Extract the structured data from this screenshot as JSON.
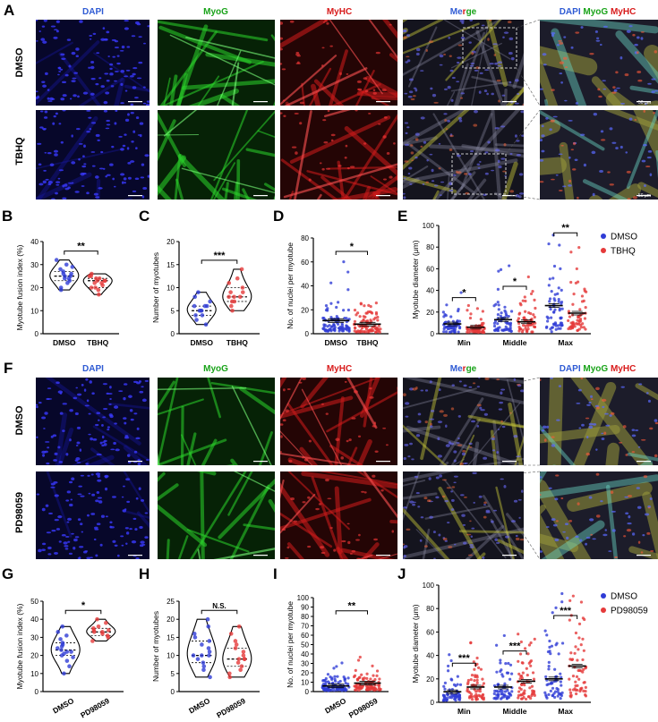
{
  "figure_sections": {
    "top": {
      "letter": "A",
      "channels": [
        "DAPI",
        "MyoG",
        "MyHC",
        "Merge"
      ],
      "merge_inset_title": {
        "dapi": "DAPI",
        "myog": "MyoG",
        "myhc": "MyHC"
      },
      "rows": [
        "DMSO",
        "TBHQ"
      ],
      "scale_text": "50 μm"
    },
    "bottom": {
      "letter": "F",
      "channels": [
        "DAPI",
        "MyoG",
        "MyHC",
        "Merge"
      ],
      "merge_inset_title": {
        "dapi": "DAPI",
        "myog": "MyoG",
        "myhc": "MyHC"
      },
      "rows": [
        "DMSO",
        "PD98059"
      ]
    }
  },
  "colors": {
    "dapi_label": "#2f5bd4",
    "myog_label": "#19a319",
    "myhc_label": "#d81b1b",
    "merge_m": "#2f5bd4",
    "merge_e": "#19a319",
    "merge_r": "#d81b1b",
    "merge_g": "#19a319",
    "merge_e2": "#d81b1b",
    "dmso_fill": "#2f3cd6",
    "treat_fill": "#e53a3a"
  },
  "chart_data": [
    {
      "id": "B",
      "type": "violin",
      "ylabel": "Myotube fusion index (%)",
      "ylim": [
        0,
        40
      ],
      "yticks": [
        0,
        10,
        20,
        30,
        40
      ],
      "categories": [
        "DMSO",
        "TBHQ"
      ],
      "significance": "**",
      "series": [
        {
          "name": "DMSO",
          "values": [
            20,
            22,
            23,
            24,
            25,
            25,
            26,
            26,
            27,
            28,
            29,
            30,
            32,
            19,
            24
          ]
        },
        {
          "name": "TBHQ",
          "values": [
            17,
            19,
            20,
            21,
            22,
            22,
            23,
            23,
            24,
            24,
            25,
            25,
            26,
            20,
            23
          ]
        }
      ]
    },
    {
      "id": "C",
      "type": "violin",
      "ylabel": "Number of myotubes",
      "ylim": [
        0,
        20
      ],
      "yticks": [
        0,
        5,
        10,
        15,
        20
      ],
      "categories": [
        "DMSO",
        "TBHQ"
      ],
      "significance": "***",
      "series": [
        {
          "name": "DMSO",
          "values": [
            2,
            3,
            4,
            4,
            5,
            5,
            6,
            6,
            7,
            8,
            9,
            5,
            6
          ]
        },
        {
          "name": "TBHQ",
          "values": [
            5,
            6,
            7,
            7,
            8,
            8,
            9,
            9,
            10,
            11,
            12,
            14,
            8
          ]
        }
      ]
    },
    {
      "id": "D",
      "type": "scatter-dot",
      "ylabel": "No. of nuclei per myotube",
      "ylim": [
        0,
        80
      ],
      "yticks": [
        0,
        20,
        40,
        60,
        80
      ],
      "categories": [
        "DMSO",
        "TBHQ"
      ],
      "significance": "*",
      "means": [
        11,
        8
      ]
    },
    {
      "id": "E",
      "type": "scatter-dot",
      "ylabel": "Myotube diameter (μm)",
      "ylim": [
        0,
        100
      ],
      "yticks": [
        0,
        20,
        40,
        60,
        80,
        100
      ],
      "categories": [
        "Min",
        "Middle",
        "Max"
      ],
      "significance": [
        "*",
        "*",
        "**"
      ],
      "legend": [
        "DMSO",
        "TBHQ"
      ],
      "means": [
        [
          9,
          6
        ],
        [
          13,
          11
        ],
        [
          26,
          19
        ]
      ]
    },
    {
      "id": "G",
      "type": "violin",
      "ylabel": "Myotube fusion index (%)",
      "ylim": [
        0,
        50
      ],
      "yticks": [
        0,
        10,
        20,
        30,
        40,
        50
      ],
      "categories": [
        "DMSO",
        "PD98059"
      ],
      "significance": "*",
      "series": [
        {
          "name": "DMSO",
          "values": [
            10,
            14,
            17,
            19,
            20,
            21,
            22,
            23,
            24,
            25,
            26,
            27,
            29,
            31,
            33,
            36,
            22
          ]
        },
        {
          "name": "PD98059",
          "values": [
            28,
            30,
            31,
            32,
            33,
            34,
            34,
            35,
            36,
            38,
            40,
            33
          ]
        }
      ]
    },
    {
      "id": "H",
      "type": "violin",
      "ylabel": "Number of myotubes",
      "ylim": [
        0,
        25
      ],
      "yticks": [
        0,
        5,
        10,
        15,
        20,
        25
      ],
      "categories": [
        "DMSO",
        "PD98059"
      ],
      "significance": "N.S.",
      "series": [
        {
          "name": "DMSO",
          "values": [
            4,
            6,
            7,
            8,
            9,
            10,
            10,
            11,
            12,
            13,
            14,
            15,
            16,
            18,
            20,
            10
          ]
        },
        {
          "name": "PD98059",
          "values": [
            4,
            5,
            6,
            7,
            8,
            9,
            9,
            10,
            11,
            12,
            13,
            14,
            16,
            18,
            9
          ]
        }
      ]
    },
    {
      "id": "I",
      "type": "scatter-dot",
      "ylabel": "No. of nuclei per myotube",
      "ylim": [
        0,
        100
      ],
      "yticks": [
        0,
        10,
        20,
        30,
        40,
        50,
        60,
        70,
        80,
        90,
        100
      ],
      "categories": [
        "DMSO",
        "PD98059"
      ],
      "significance": "**",
      "means": [
        6,
        9
      ]
    },
    {
      "id": "J",
      "type": "scatter-dot",
      "ylabel": "Myotube diameter (μm)",
      "ylim": [
        0,
        100
      ],
      "yticks": [
        0,
        20,
        40,
        60,
        80,
        100
      ],
      "categories": [
        "Min",
        "Middle",
        "Max"
      ],
      "significance": [
        "***",
        "***",
        "***"
      ],
      "legend": [
        "DMSO",
        "PD98059"
      ],
      "means": [
        [
          9,
          13
        ],
        [
          13,
          18
        ],
        [
          20,
          31
        ]
      ]
    }
  ]
}
